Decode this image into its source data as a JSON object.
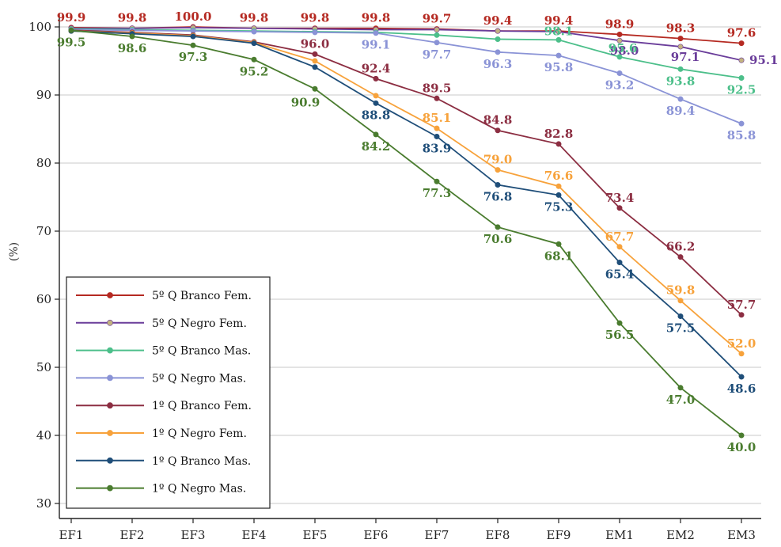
{
  "chart_data": {
    "type": "line",
    "ylabel": "(%)",
    "xlabel": "",
    "ylim": [
      28,
      101
    ],
    "yticks": [
      30,
      40,
      50,
      60,
      70,
      80,
      90,
      100
    ],
    "grid": "horizontal",
    "legend_position": "bottom-left",
    "categories": [
      "EF1",
      "EF2",
      "EF3",
      "EF4",
      "EF5",
      "EF6",
      "EF7",
      "EF8",
      "EF9",
      "EM1",
      "EM2",
      "EM3"
    ],
    "series": [
      {
        "name": "5º Q Branco Fem.",
        "color": "#b52a22",
        "marker": "#b52a22",
        "values": [
          99.9,
          99.8,
          100.0,
          99.8,
          99.8,
          99.8,
          99.7,
          99.4,
          99.4,
          98.9,
          98.3,
          97.6
        ],
        "labels": [
          "99.9",
          "99.8",
          "100.0",
          "99.8",
          "99.8",
          "99.8",
          "99.7",
          "99.4",
          "99.4",
          "98.9",
          "98.3",
          "97.6"
        ]
      },
      {
        "name": "5º Q Negro Fem.",
        "color": "#6a3d9a",
        "marker": "#c2b280",
        "values": [
          99.8,
          99.8,
          99.9,
          99.8,
          99.7,
          99.6,
          99.6,
          99.4,
          99.3,
          98.0,
          97.1,
          95.1
        ],
        "labels": [
          "",
          "",
          "",
          "",
          "",
          "",
          "",
          "",
          "",
          "98.0",
          "97.1",
          "95.1"
        ]
      },
      {
        "name": "5º Q Branco Mas.",
        "color": "#4cbf8a",
        "marker": "#4cbf8a",
        "values": [
          99.7,
          99.6,
          99.5,
          99.4,
          99.3,
          99.2,
          98.8,
          98.2,
          98.1,
          95.6,
          93.8,
          92.5
        ],
        "labels": [
          "",
          "",
          "",
          "",
          "",
          "",
          "",
          "",
          "98.1",
          "95.6",
          "93.8",
          "92.5"
        ]
      },
      {
        "name": "5º Q Negro Mas.",
        "color": "#8a93d6",
        "marker": "#8a93d6",
        "values": [
          99.6,
          99.5,
          99.4,
          99.3,
          99.2,
          99.1,
          97.7,
          96.3,
          95.8,
          93.2,
          89.4,
          85.8
        ],
        "labels": [
          "",
          "",
          "",
          "",
          "",
          "99.1",
          "97.7",
          "96.3",
          "95.8",
          "93.2",
          "89.4",
          "85.8"
        ]
      },
      {
        "name": "1º Q Branco Fem.",
        "color": "#8c2e42",
        "marker": "#8c2e42",
        "values": [
          99.5,
          99.2,
          98.8,
          97.8,
          96.0,
          92.4,
          89.5,
          84.8,
          82.8,
          73.4,
          66.2,
          57.7
        ],
        "labels": [
          "",
          "",
          "",
          "",
          "96.0",
          "92.4",
          "89.5",
          "84.8",
          "82.8",
          "73.4",
          "66.2",
          "57.7"
        ]
      },
      {
        "name": "1º Q Negro Fem.",
        "color": "#f7a23b",
        "marker": "#f7a23b",
        "values": [
          99.4,
          99.1,
          98.7,
          97.7,
          95.0,
          89.9,
          85.1,
          79.0,
          76.6,
          67.7,
          59.8,
          52.0
        ],
        "labels": [
          "",
          "",
          "",
          "",
          "",
          "",
          "85.1",
          "79.0",
          "76.6",
          "67.7",
          "59.8",
          "52.0"
        ]
      },
      {
        "name": "1º Q Branco Mas.",
        "color": "#1f4e79",
        "marker": "#1f4e79",
        "values": [
          99.4,
          99.0,
          98.6,
          97.6,
          94.1,
          88.8,
          83.9,
          76.8,
          75.3,
          65.4,
          57.5,
          48.6
        ],
        "labels": [
          "",
          "",
          "",
          "",
          "",
          "88.8",
          "83.9",
          "76.8",
          "75.3",
          "65.4",
          "57.5",
          "48.6"
        ]
      },
      {
        "name": "1º Q Negro Mas.",
        "color": "#4a7c2f",
        "marker": "#4a7c2f",
        "values": [
          99.5,
          98.6,
          97.3,
          95.2,
          90.9,
          84.2,
          77.3,
          70.6,
          68.1,
          56.5,
          47.0,
          40.0
        ],
        "labels": [
          "99.5",
          "98.6",
          "97.3",
          "95.2",
          "90.9",
          "84.2",
          "77.3",
          "70.6",
          "68.1",
          "56.5",
          "47.0",
          "40.0"
        ]
      }
    ]
  }
}
